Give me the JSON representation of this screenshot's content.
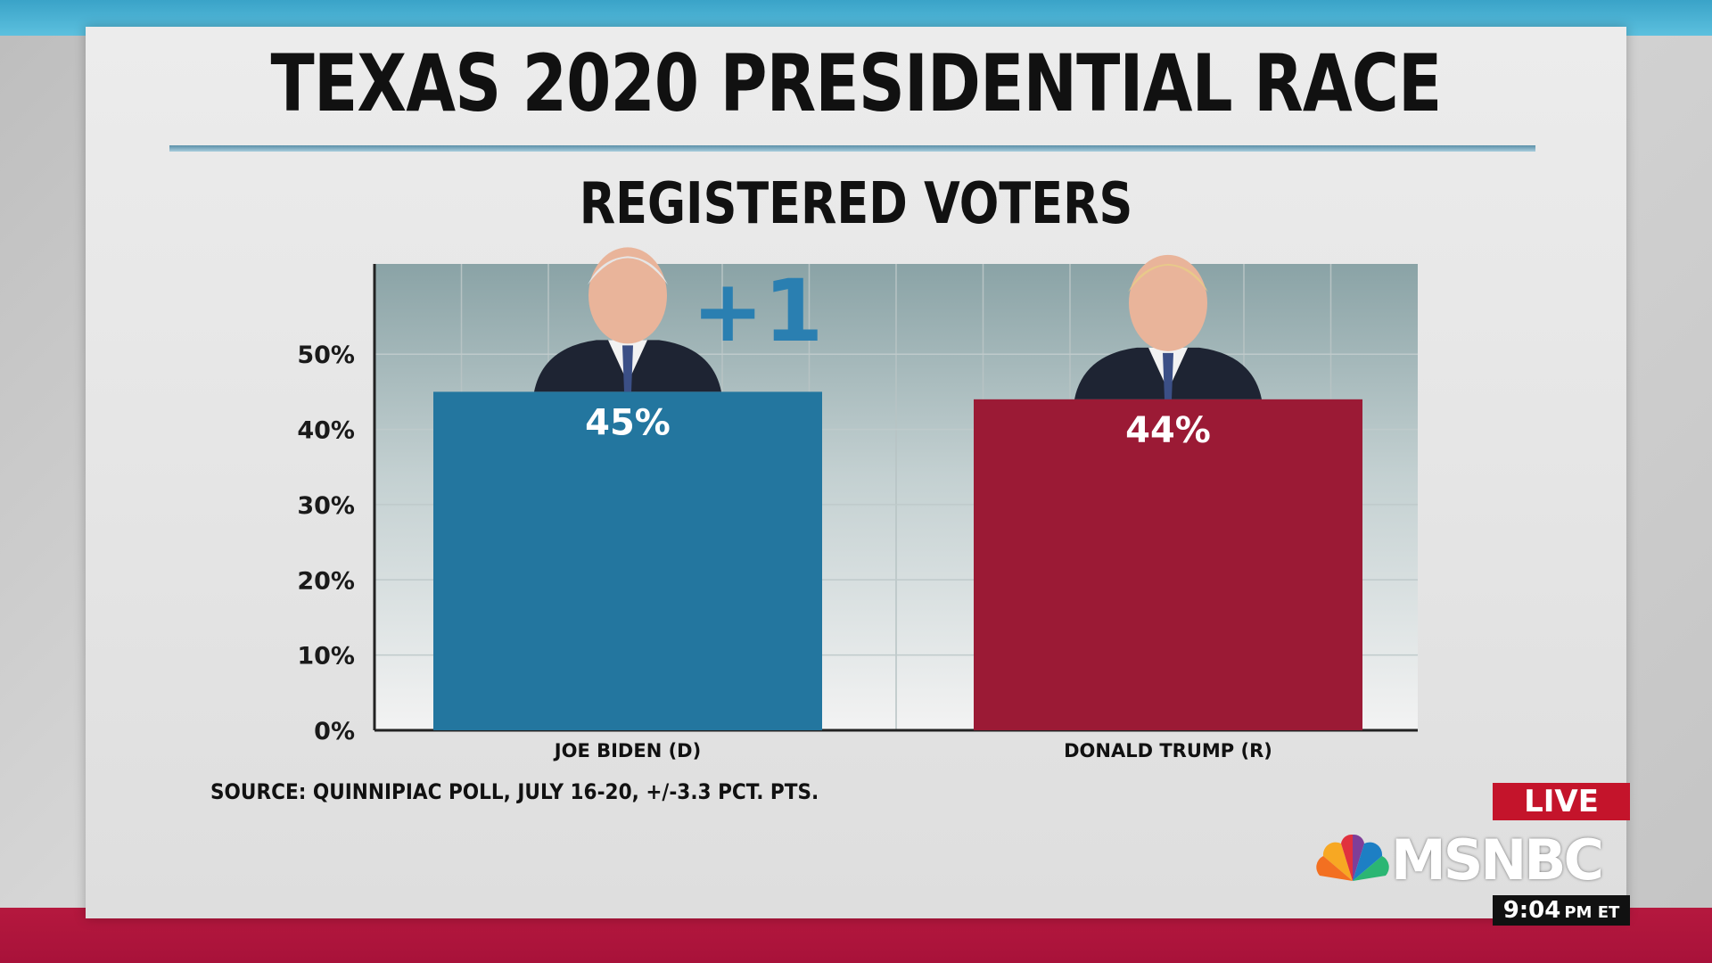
{
  "graphic": {
    "title": "TEXAS 2020 PRESIDENTIAL RACE",
    "subtitle": "REGISTERED VOTERS",
    "lead_label": "+1",
    "source": "SOURCE: QUINNIPIAC POLL, JULY 16-20, +/-3.3 PCT. PTS."
  },
  "chart_data": {
    "type": "bar",
    "title": "TEXAS 2020 PRESIDENTIAL RACE",
    "subtitle": "REGISTERED VOTERS",
    "categories": [
      "JOE BIDEN (D)",
      "DONALD TRUMP (R)"
    ],
    "values": [
      45,
      44
    ],
    "value_labels": [
      "45%",
      "44%"
    ],
    "colors": [
      "#23769f",
      "#9b1a35"
    ],
    "yticks": [
      "0%",
      "10%",
      "20%",
      "30%",
      "40%",
      "50%"
    ],
    "ylim": [
      0,
      62
    ],
    "grid": true,
    "xlabel": "",
    "ylabel": ""
  },
  "broadcast": {
    "live_label": "LIVE",
    "network": "MSNBC",
    "time": "9:04",
    "time_suffix": "PM ET"
  },
  "colors": {
    "accent_blue": "#2a7fb1",
    "accent_red": "#c4142b",
    "plot_bg_top": "#8fa7a9",
    "plot_bg_bottom": "#f2f2f2"
  }
}
